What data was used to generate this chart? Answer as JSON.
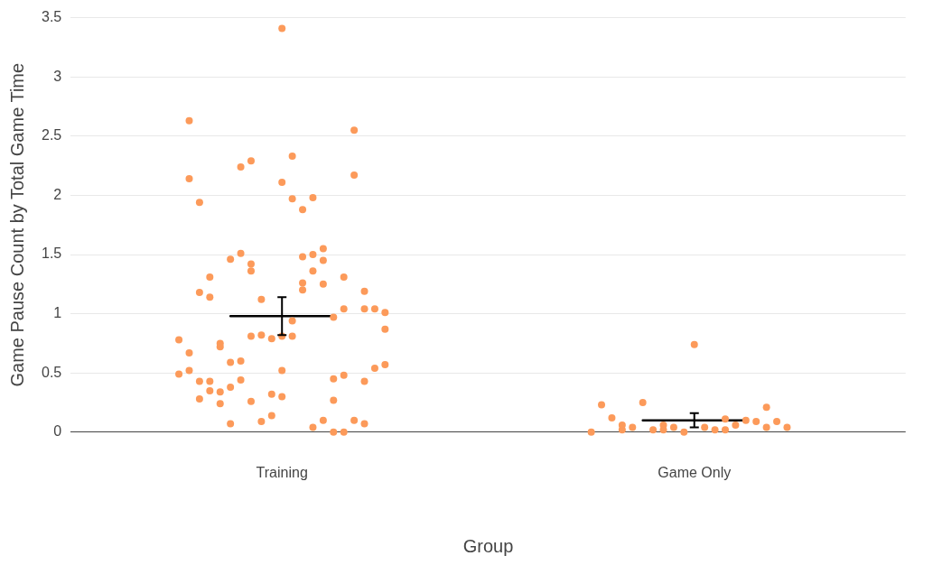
{
  "chart_data": {
    "type": "scatter",
    "xlabel": "Group",
    "ylabel": "Game Pause Count by Total Game Time",
    "categories": [
      null,
      null,
      null,
      null,
      null,
      null,
      null,
      null,
      null,
      null,
      null,
      null,
      null,
      null,
      null,
      null,
      null,
      null,
      null,
      null,
      "Training",
      null,
      null,
      null,
      null,
      null,
      null,
      null,
      null,
      null,
      null,
      null,
      null,
      null,
      null,
      null,
      null,
      null,
      null,
      null,
      null,
      null,
      null,
      null,
      null,
      null,
      null,
      null,
      null,
      null,
      null,
      null,
      null,
      null,
      null,
      null,
      null,
      null,
      null,
      null,
      "Game Only",
      null,
      null,
      null,
      null,
      null,
      null,
      null,
      null,
      null,
      null,
      null,
      null,
      null,
      null,
      null,
      null,
      null,
      null,
      null,
      null
    ],
    "series": [
      {
        "color": "#fc9a5a",
        "marker": "circle",
        "values": [
          null,
          null,
          null,
          null,
          null,
          null,
          null,
          null,
          null,
          null,
          0.78,
          2.63,
          1.94,
          1.31,
          0.75,
          1.46,
          2.24,
          2.29,
          1.12,
          0.79,
          3.41,
          2.33,
          1.88,
          1.98,
          1.55,
          0.97,
          1.31,
          2.55,
          1.19,
          1.04,
          0.87,
          null,
          null,
          null,
          null,
          null,
          null,
          null,
          null,
          null,
          null,
          null,
          null,
          null,
          null,
          null,
          null,
          null,
          null,
          null,
          0,
          0.23,
          0.12,
          0.06,
          0.04,
          0.25,
          0.02,
          0.06,
          0.04,
          0,
          0.74,
          0.04,
          0.02,
          0.02,
          0.06,
          0.1,
          0.09,
          0.04,
          0.09,
          0.04,
          null,
          null,
          null,
          null,
          null,
          null,
          null,
          null,
          null,
          null,
          null
        ]
      },
      {
        "color": "#fc9a5a",
        "marker": "circle",
        "values": [
          null,
          null,
          null,
          null,
          null,
          null,
          null,
          null,
          null,
          null,
          0.49,
          2.14,
          1.18,
          1.14,
          0.72,
          0.59,
          1.51,
          1.42,
          0.82,
          0.32,
          2.11,
          1.97,
          1.48,
          1.5,
          1.45,
          0.45,
          1.04,
          2.17,
          1.04,
          0.54,
          1.01,
          null,
          null,
          null,
          null,
          null,
          null,
          null,
          null,
          null,
          null,
          null,
          null,
          null,
          null,
          null,
          null,
          null,
          null,
          null,
          null,
          null,
          null,
          0.02,
          null,
          null,
          null,
          0.02,
          null,
          null,
          null,
          null,
          null,
          0.11,
          null,
          null,
          null,
          0.21,
          null,
          null,
          null,
          null,
          null,
          null,
          null,
          null,
          null,
          null,
          null,
          null,
          null
        ]
      },
      {
        "color": "#fc9a5a",
        "marker": "circle",
        "values": [
          null,
          null,
          null,
          null,
          null,
          null,
          null,
          null,
          null,
          null,
          null,
          0.67,
          0.43,
          0.43,
          0.34,
          0.38,
          0.6,
          1.36,
          0.09,
          0.14,
          0.81,
          0.94,
          1.26,
          1.36,
          1.25,
          0.27,
          0.48,
          0.1,
          0.43,
          null,
          0.57,
          null,
          null,
          null,
          null,
          null,
          null,
          null,
          null,
          null,
          null,
          null,
          null,
          null,
          null,
          null,
          null,
          null,
          null,
          null,
          null,
          null,
          null,
          null,
          null,
          null,
          null,
          null,
          null,
          null,
          null,
          null,
          null,
          null,
          null,
          null,
          null,
          null,
          null,
          null,
          null,
          null,
          null,
          null,
          null,
          null,
          null,
          null,
          null,
          null,
          null
        ]
      },
      {
        "color": "#fc9a5a",
        "marker": "circle",
        "values": [
          null,
          null,
          null,
          null,
          null,
          null,
          null,
          null,
          null,
          null,
          null,
          0.52,
          0.28,
          0.35,
          0.24,
          0.07,
          0.44,
          0.26,
          null,
          null,
          0.52,
          0.81,
          1.2,
          0.04,
          0.1,
          0,
          0,
          null,
          0.07,
          null,
          null,
          null,
          null,
          null,
          null,
          null,
          null,
          null,
          null,
          null,
          null,
          null,
          null,
          null,
          null,
          null,
          null,
          null,
          null,
          null,
          null,
          null,
          null,
          null,
          null,
          null,
          null,
          null,
          null,
          null,
          null,
          null,
          null,
          null,
          null,
          null,
          null,
          null,
          null,
          null,
          null,
          null,
          null,
          null,
          null,
          null,
          null,
          null,
          null,
          null,
          null
        ]
      },
      {
        "color": "#fc9a5a",
        "marker": "circle",
        "values": [
          null,
          null,
          null,
          null,
          null,
          null,
          null,
          null,
          null,
          null,
          null,
          null,
          null,
          null,
          null,
          null,
          null,
          0.81,
          null,
          null,
          0.3,
          null,
          null,
          null,
          null,
          null,
          null,
          null,
          null,
          null,
          null,
          null,
          null,
          null,
          null,
          null,
          null,
          null,
          null,
          null,
          null,
          null,
          null,
          null,
          null,
          null,
          null,
          null,
          null,
          null,
          null,
          null,
          null,
          null,
          null,
          null,
          null,
          null,
          null,
          null,
          null,
          null,
          null,
          null,
          null,
          null,
          null,
          null,
          null,
          null,
          null,
          null,
          null,
          null,
          null,
          null,
          null,
          null,
          null,
          null,
          null
        ]
      },
      {
        "type": "line",
        "color": "#000000",
        "marker": "none",
        "values": [
          null,
          null,
          null,
          null,
          null,
          null,
          null,
          null,
          null,
          null,
          null,
          null,
          null,
          null,
          null,
          0.98,
          0.98,
          0.98,
          0.98,
          0.98,
          0.98,
          0.98,
          0.98,
          0.98,
          0.98,
          0.98,
          null,
          null,
          null,
          null,
          null,
          null,
          null,
          null,
          null,
          null,
          null,
          null,
          null,
          null,
          null,
          null,
          null,
          null,
          null,
          null,
          null,
          null,
          null,
          null,
          null,
          null,
          null,
          null,
          null,
          0.1,
          0.1,
          0.1,
          0.1,
          0.1,
          0.1,
          0.1,
          0.1,
          0.1,
          0.1,
          0.1,
          null,
          null,
          null,
          null,
          null,
          null,
          null,
          null,
          null,
          null,
          null,
          null,
          null,
          null,
          null
        ],
        "errors": [
          null,
          null,
          null,
          null,
          null,
          null,
          null,
          null,
          null,
          null,
          null,
          null,
          null,
          null,
          null,
          null,
          null,
          null,
          null,
          null,
          [
            0.82,
            1.14
          ],
          null,
          null,
          null,
          null,
          null,
          null,
          null,
          null,
          null,
          null,
          null,
          null,
          null,
          null,
          null,
          null,
          null,
          null,
          null,
          null,
          null,
          null,
          null,
          null,
          null,
          null,
          null,
          null,
          null,
          null,
          null,
          null,
          null,
          null,
          null,
          null,
          null,
          null,
          null,
          [
            0.04,
            0.16
          ],
          null,
          null,
          null,
          null,
          null,
          null,
          null,
          null,
          null,
          null,
          null,
          null,
          null,
          null,
          null,
          null,
          null,
          null,
          null,
          null
        ]
      }
    ],
    "ylim": [
      0,
      3.5
    ],
    "yticks": [
      0,
      0.5,
      1,
      1.5,
      2,
      2.5,
      3,
      3.5
    ],
    "grid": "y",
    "legend": false
  }
}
